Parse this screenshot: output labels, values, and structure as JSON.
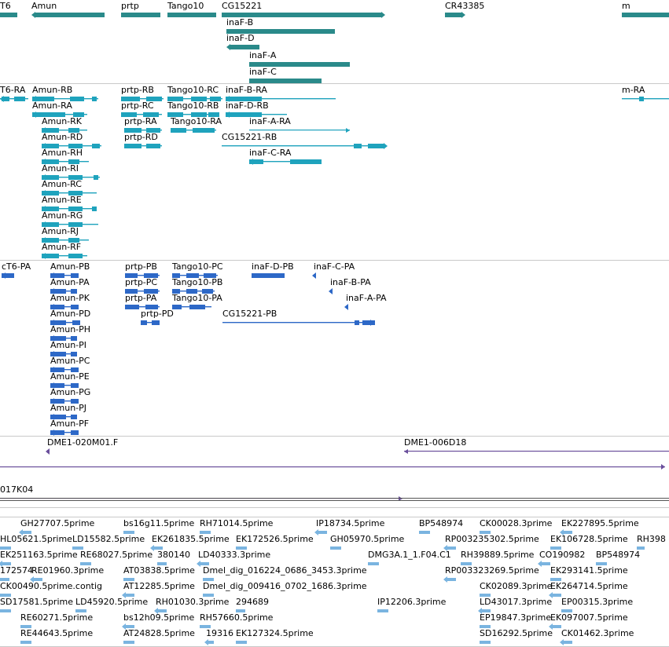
{
  "colors": {
    "gene": "#2a8a8a",
    "transcript": "#1fa3bd",
    "protein": "#2d68c7",
    "bac": "#6a4f9c",
    "est": "#7ab4e0",
    "divider": "#c9c9c9"
  },
  "tracks": {
    "genes": [
      {
        "name": "T6",
        "dir": "none"
      },
      {
        "name": "Amun",
        "dir": "left"
      },
      {
        "name": "prtp",
        "dir": "none"
      },
      {
        "name": "Tango10",
        "dir": "none"
      },
      {
        "name": "CG15221",
        "dir": "right"
      },
      {
        "name": "inaF-B",
        "dir": "none"
      },
      {
        "name": "inaF-D",
        "dir": "left"
      },
      {
        "name": "inaF-A",
        "dir": "none"
      },
      {
        "name": "inaF-C",
        "dir": "none"
      },
      {
        "name": "CR43385",
        "dir": "right"
      },
      {
        "name": "m",
        "dir": "none"
      }
    ],
    "transcripts": [
      "T6-RA",
      "Amun-RB",
      "Amun-RA",
      "Amun-RK",
      "Amun-RD",
      "Amun-RH",
      "Amun-RI",
      "Amun-RC",
      "Amun-RE",
      "Amun-RG",
      "Amun-RJ",
      "Amun-RF",
      "prtp-RB",
      "prtp-RC",
      "prtp-RA",
      "prtp-RD",
      "Tango10-RC",
      "Tango10-RB",
      "Tango10-RA",
      "inaF-B-RA",
      "inaF-D-RB",
      "inaF-A-RA",
      "CG15221-RB",
      "inaF-C-RA",
      "m-RA"
    ],
    "proteins": [
      "cT6-PA",
      "Amun-PB",
      "Amun-PA",
      "Amun-PK",
      "Amun-PD",
      "Amun-PH",
      "Amun-PI",
      "Amun-PC",
      "Amun-PE",
      "Amun-PG",
      "Amun-PJ",
      "Amun-PF",
      "prtp-PB",
      "prtp-PC",
      "prtp-PA",
      "prtp-PD",
      "Tango10-PC",
      "Tango10-PB",
      "Tango10-PA",
      "inaF-D-PB",
      "inaF-C-PA",
      "inaF-B-PA",
      "inaF-A-PA",
      "CG15221-PB"
    ],
    "bac_clones": [
      "DME1-020M01.F",
      "DME1-006D18",
      "017K04"
    ],
    "ests": [
      "GH27707.5prime",
      "bs16g11.5prime",
      "RH71014.5prime",
      "IP18734.5prime",
      "BP548974",
      "CK00028.3prime",
      "EK227895.5prime",
      "HL05621.5prime",
      "LD15582.5prime",
      "EK261835.5prime",
      "EK172526.5prime",
      "GH05970.5prime",
      "RP003235302.5prime",
      "EK106728.5prime",
      "RH398",
      "EK251163.5prime",
      "RE68027.5prime",
      "380140",
      "LD40333.3prime",
      "DMG3A.1_1.F04.C1",
      "RH39889.5prime",
      "CO190982",
      "BP548974",
      "172574",
      "RE01960.3prime",
      "AT03838.5prime",
      "Dmel_dig_016224_0686_3453.3prime",
      "RP003323269.5prime",
      "EK293141.5prime",
      "CK00490.5prime.contig",
      "AT12285.5prime",
      "Dmel_dig_009416_0702_1686.3prime",
      "CK02089.3prime",
      "EK264714.5prime",
      "SD17581.5prime",
      "LD45920.5prime",
      "RH01030.3prime",
      "294689",
      "IP12206.3prime",
      "LD43017.3prime",
      "EP00315.3prime",
      "RE60271.5prime",
      "bs12h09.5prime",
      "RH57660.5prime",
      "EP19847.3prime",
      "EK097007.5prime",
      "RE44643.5prime",
      "AT24828.5prime",
      "19316",
      "EK127324.5prime",
      "SD16292.5prime",
      "CK01462.3prime"
    ]
  }
}
